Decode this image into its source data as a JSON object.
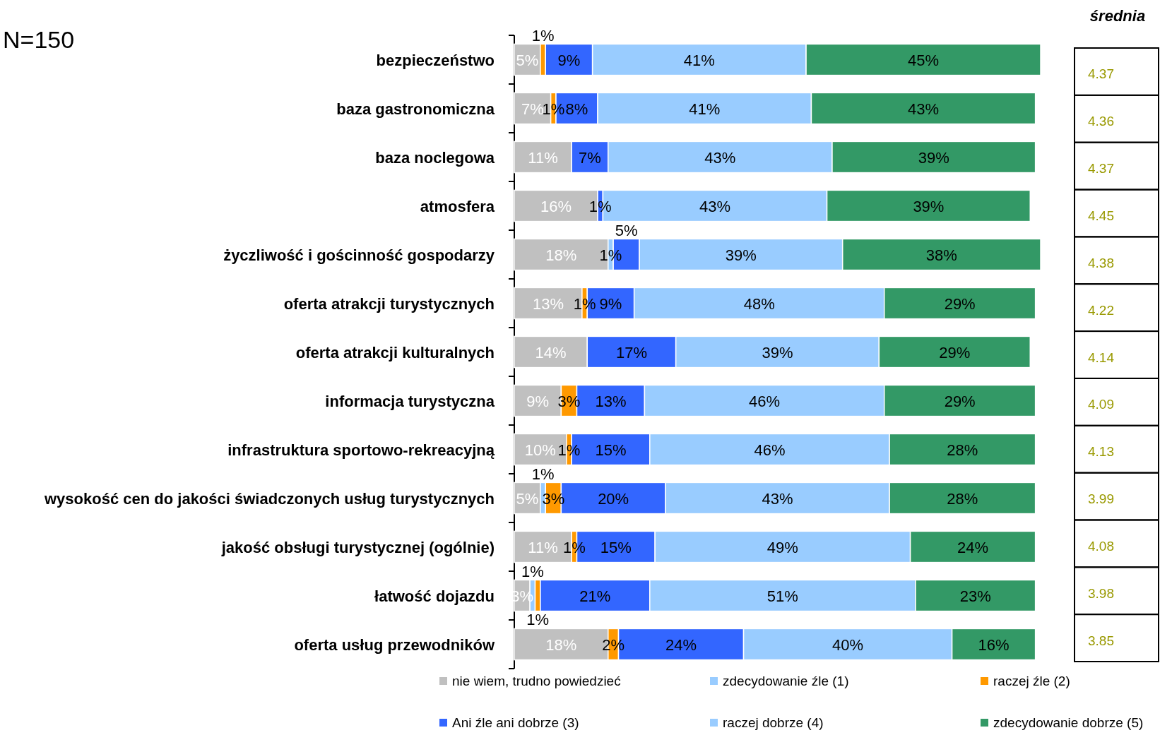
{
  "chart_data": [
    {
      "type": "bar",
      "orientation": "horizontal",
      "stacked": true,
      "legend": "bottom",
      "annotations": [
        "N=150"
      ],
      "categories": [
        "bezpieczeństwo",
        "baza gastronomiczna",
        "baza noclegowa",
        "atmosfera",
        "życzliwość i gościnność gospodarzy",
        "oferta atrakcji turystycznych",
        "oferta atrakcji kulturalnych",
        "informacja turystyczna",
        "infrastruktura sportowo-rekreacyjną",
        "wysokość cen do jakości świadczonych usług turystycznych",
        "jakość obsługi turystycznej (ogólnie)",
        "łatwość dojazdu",
        "oferta usług przewodników"
      ],
      "series": [
        {
          "name": "nie wiem, trudno powiedzieć",
          "color": "#c0c0c0",
          "values": [
            5,
            7,
            11,
            16,
            18,
            13,
            14,
            9,
            10,
            5,
            11,
            3,
            18
          ],
          "value_labels": [
            "5%",
            "7%",
            "11%",
            "16%",
            "18%",
            "13%",
            "14%",
            "9%",
            "10%",
            "5%",
            "11%",
            "3%",
            "18%"
          ]
        },
        {
          "name": "zdecydowanie źle (1)",
          "color": "#99ccff",
          "values": [
            null,
            null,
            null,
            null,
            1,
            null,
            null,
            null,
            null,
            1,
            null,
            1,
            null
          ],
          "value_labels": [
            null,
            null,
            null,
            null,
            "1%",
            null,
            null,
            null,
            null,
            "1%",
            null,
            "1%",
            null
          ]
        },
        {
          "name": "raczej źle (2)",
          "color": "#ff9900",
          "values": [
            1,
            1,
            null,
            null,
            null,
            1,
            null,
            3,
            1,
            3,
            1,
            1,
            2
          ],
          "value_labels": [
            "1%",
            "1%",
            null,
            null,
            null,
            "1%",
            null,
            "3%",
            "1%",
            "3%",
            "1%",
            "1%",
            "2%"
          ]
        },
        {
          "name": "Ani źle ani dobrze (3)",
          "color": "#3366ff",
          "values": [
            9,
            8,
            7,
            1,
            5,
            9,
            17,
            13,
            15,
            20,
            15,
            21,
            24
          ],
          "value_labels": [
            "9%",
            "8%",
            "7%",
            "1%",
            "5%",
            "9%",
            "17%",
            "13%",
            "15%",
            "20%",
            "15%",
            "21%",
            "24%"
          ]
        },
        {
          "name": "raczej dobrze (4)",
          "color": "#99ccff",
          "values": [
            41,
            41,
            43,
            43,
            39,
            48,
            39,
            46,
            46,
            43,
            49,
            51,
            40
          ],
          "value_labels": [
            "41%",
            "41%",
            "43%",
            "43%",
            "39%",
            "48%",
            "39%",
            "46%",
            "46%",
            "43%",
            "49%",
            "51%",
            "40%"
          ]
        },
        {
          "name": "zdecydowanie dobrze (5)",
          "color": "#339966",
          "values": [
            45,
            43,
            39,
            39,
            38,
            29,
            29,
            29,
            28,
            28,
            24,
            23,
            16
          ],
          "value_labels": [
            "45%",
            "43%",
            "39%",
            "39%",
            "38%",
            "29%",
            "29%",
            "29%",
            "28%",
            "28%",
            "24%",
            "23%",
            "16%"
          ]
        }
      ]
    },
    {
      "type": "other",
      "title": "średnia",
      "color": "#999900",
      "data_labels": true,
      "values": [
        4.37,
        4.36,
        4.37,
        4.45,
        4.38,
        4.22,
        4.14,
        4.09,
        4.13,
        3.99,
        4.08,
        3.98,
        3.85
      ]
    }
  ]
}
